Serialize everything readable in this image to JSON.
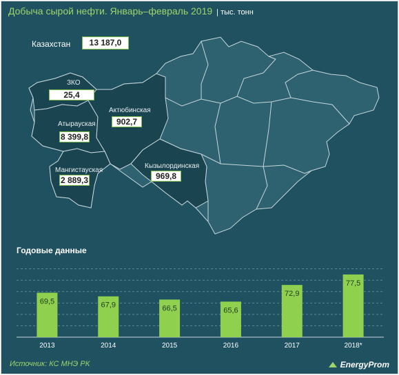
{
  "header": {
    "title": "Добыча сырой нефти. Январь–февраль 2019",
    "unit": "| тыс. тонн"
  },
  "map": {
    "country_label": "Казахстан",
    "country_value": "13 187,0",
    "regions": [
      {
        "label": "ЗКО",
        "value": "25,4"
      },
      {
        "label": "Атырауская",
        "value": "8 399,8"
      },
      {
        "label": "Мангистауская",
        "value": "2 889,3"
      },
      {
        "label": "Актюбинская",
        "value": "902,7"
      },
      {
        "label": "Кызылординская",
        "value": "969,8"
      }
    ]
  },
  "colors": {
    "background": "#1f5160",
    "region_fill": "#2e6270",
    "highlight_fill": "#1a4450",
    "bar": "#8fd14f",
    "accent_text": "#9fd56b"
  },
  "chart_data": {
    "type": "bar",
    "title": "Годовые данные",
    "categories": [
      "2013",
      "2014",
      "2015",
      "2016",
      "2017",
      "2018*"
    ],
    "values": [
      69.5,
      67.9,
      66.5,
      65.6,
      72.9,
      77.5
    ],
    "value_labels": [
      "69,5",
      "67,9",
      "66,5",
      "65,6",
      "72,9",
      "77,5"
    ],
    "ylim": [
      50,
      82
    ],
    "grid": true
  },
  "footer": {
    "source": "Источник: КС МНЭ РК",
    "logo": "EnergyProm"
  }
}
